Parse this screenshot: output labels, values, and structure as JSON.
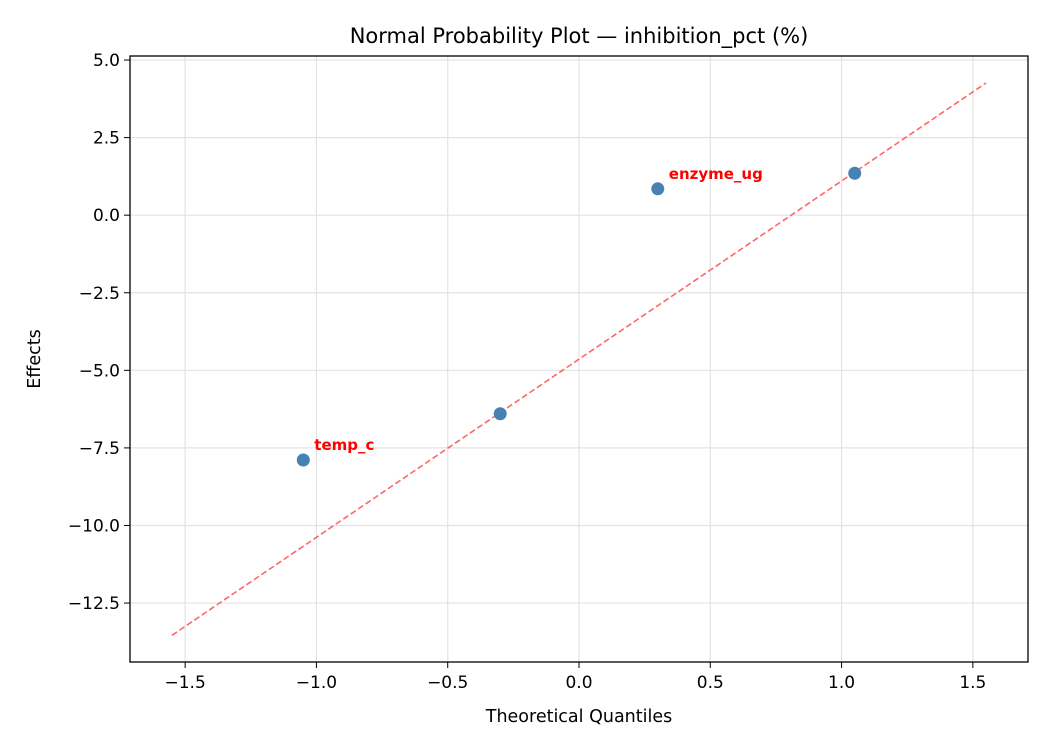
{
  "chart_data": {
    "type": "scatter",
    "title": "Normal Probability Plot — inhibition_pct (%)",
    "xlabel": "Theoretical Quantiles",
    "ylabel": "Effects",
    "xlim": [
      -1.71,
      1.71
    ],
    "ylim": [
      -14.4,
      5.13
    ],
    "xticks": [
      -1.5,
      -1.0,
      -0.5,
      0.0,
      0.5,
      1.0,
      1.5
    ],
    "xtick_labels": [
      "−1.5",
      "−1.0",
      "−0.5",
      "0.0",
      "0.5",
      "1.0",
      "1.5"
    ],
    "yticks": [
      5.0,
      2.5,
      0.0,
      -2.5,
      -5.0,
      -7.5,
      -10.0,
      -12.5
    ],
    "ytick_labels": [
      "5.0",
      "2.5",
      "0.0",
      "−2.5",
      "−5.0",
      "−7.5",
      "−10.0",
      "−12.5"
    ],
    "grid": true,
    "points": [
      {
        "x": -1.05,
        "y": -7.89,
        "label": "temp_c"
      },
      {
        "x": -0.3,
        "y": -6.4,
        "label": ""
      },
      {
        "x": 0.3,
        "y": 0.85,
        "label": "enzyme_ug"
      },
      {
        "x": 1.05,
        "y": 1.35,
        "label": ""
      }
    ],
    "reference_line": {
      "x": [
        -1.55,
        1.55
      ],
      "y": [
        -13.54,
        4.26
      ],
      "style": "dashed"
    },
    "colors": {
      "points": "#4682b4",
      "line": "#ff6666",
      "annotation": "#ff0000"
    }
  }
}
